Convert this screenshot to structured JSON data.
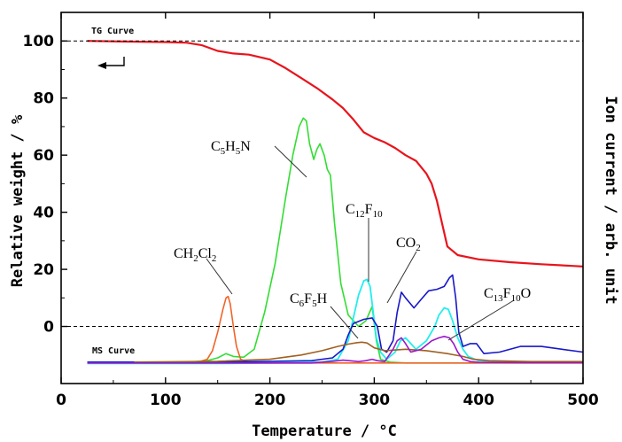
{
  "chart_data": {
    "type": "line",
    "xlabel": "Temperature / °C",
    "ylabel_left": "Relative weight / %",
    "ylabel_right": "Ion current / arb. unit",
    "xlim": [
      0,
      500
    ],
    "ylim": [
      -20,
      110
    ],
    "xticks": [
      "0",
      "100",
      "200",
      "300",
      "400",
      "500"
    ],
    "yticks": [
      "0",
      "20",
      "40",
      "60",
      "80",
      "100"
    ],
    "grid": false,
    "reference_lines": [
      100,
      0
    ],
    "annotations": {
      "tg_curve": "TG Curve",
      "ms_curve": "MS Curve",
      "c5h5n": {
        "base": "C",
        "s1": "5",
        "m1": "H",
        "s2": "5",
        "m2": "N"
      },
      "ch2cl2": {
        "base": "CH",
        "s1": "2",
        "m1": "Cl",
        "s2": "2"
      },
      "c12f10": {
        "base": "C",
        "s1": "12",
        "m1": "F",
        "s2": "10"
      },
      "co2": {
        "base": "CO",
        "s1": "2"
      },
      "c6f5h": {
        "base": "C",
        "s1": "6",
        "m1": "F",
        "s2": "5",
        "m2": "H"
      },
      "c13f10o": {
        "base": "C",
        "s1": "13",
        "m1": "F",
        "s2": "10",
        "m2": "O"
      }
    },
    "series": [
      {
        "key": "TG",
        "color": "#e8141c",
        "width": 2.2,
        "x": [
          25,
          60,
          100,
          120,
          135,
          150,
          165,
          180,
          200,
          215,
          230,
          245,
          260,
          270,
          280,
          290,
          300,
          310,
          320,
          330,
          340,
          350,
          355,
          360,
          365,
          370,
          380,
          400,
          430,
          460,
          490,
          500
        ],
        "y": [
          100,
          99.8,
          99.6,
          99.4,
          98.5,
          96.5,
          95.6,
          95.2,
          93.5,
          90.5,
          87,
          83.5,
          79.5,
          76.5,
          72.5,
          68,
          66,
          64.5,
          62.5,
          60,
          58,
          53.5,
          50,
          44,
          36,
          28,
          25,
          23.5,
          22.5,
          21.8,
          21.2,
          21
        ]
      },
      {
        "key": "C5H5N",
        "color": "#33dd33",
        "width": 1.6,
        "x": [
          25,
          100,
          120,
          140,
          150,
          158,
          165,
          175,
          185,
          195,
          205,
          215,
          222,
          228,
          232,
          235,
          238,
          242,
          245,
          248,
          252,
          255,
          258,
          262,
          268,
          275,
          285,
          292,
          298,
          302,
          306,
          315,
          330,
          360,
          400,
          450,
          500
        ],
        "y": [
          -12.8,
          -12.8,
          -12.6,
          -12,
          -11,
          -9.5,
          -10.5,
          -10.8,
          -8,
          5,
          22,
          45,
          60,
          70,
          73,
          72,
          64,
          58.5,
          62,
          64,
          60,
          55,
          53,
          36,
          15,
          4,
          0,
          2,
          7,
          -5,
          -11.5,
          -12.5,
          -12.8,
          -12.8,
          -12.8,
          -12.8,
          -12.8
        ]
      },
      {
        "key": "CH2Cl2",
        "color": "#f06428",
        "width": 1.6,
        "x": [
          25,
          100,
          130,
          140,
          145,
          150,
          155,
          158,
          160,
          162,
          165,
          168,
          172,
          180,
          200,
          300,
          400,
          500
        ],
        "y": [
          -12.8,
          -12.8,
          -12.6,
          -11.5,
          -8.5,
          -2,
          6,
          10,
          10.5,
          8,
          0,
          -7,
          -11.5,
          -12.7,
          -12.8,
          -12.8,
          -12.8,
          -12.8
        ]
      },
      {
        "key": "C12F10",
        "color": "#22eeee",
        "width": 1.8,
        "x": [
          25,
          150,
          200,
          250,
          265,
          275,
          280,
          285,
          290,
          293,
          296,
          299,
          302,
          306,
          312,
          320,
          325,
          330,
          335,
          340,
          350,
          358,
          362,
          367,
          371,
          375,
          380,
          385,
          390,
          400,
          450,
          500
        ],
        "y": [
          -13,
          -13,
          -12.8,
          -12.5,
          -11.5,
          -5,
          3,
          11,
          16,
          16.5,
          14,
          5,
          -4,
          -9,
          -11.5,
          -9,
          -5,
          -4,
          -6,
          -8,
          -5,
          0,
          4,
          6.5,
          6,
          2,
          -4,
          -8,
          -10.5,
          -12,
          -12.5,
          -12.5
        ]
      },
      {
        "key": "CO2",
        "color": "#1818c8",
        "width": 1.6,
        "x": [
          25,
          150,
          200,
          240,
          260,
          270,
          275,
          280,
          290,
          298,
          303,
          307,
          312,
          318,
          322,
          326,
          330,
          338,
          345,
          352,
          360,
          367,
          372,
          375,
          378,
          381,
          385,
          392,
          398,
          405,
          420,
          440,
          460,
          480,
          500
        ],
        "y": [
          -12.5,
          -12.5,
          -12.2,
          -12,
          -11,
          -8,
          -3,
          1,
          2.5,
          3,
          0,
          -8,
          -9,
          -5,
          5,
          12,
          10,
          6.5,
          9.5,
          12.5,
          13,
          14,
          17,
          18,
          10,
          -2,
          -7,
          -6,
          -6,
          -9.5,
          -9,
          -7,
          -7,
          -8,
          -9
        ]
      },
      {
        "key": "C6F5H",
        "color": "#a06020",
        "width": 1.6,
        "x": [
          70,
          150,
          200,
          230,
          250,
          265,
          275,
          283,
          288,
          293,
          300,
          310,
          330,
          350,
          370,
          385,
          395,
          410,
          450,
          500
        ],
        "y": [
          -12.5,
          -12.2,
          -11.5,
          -10,
          -8.5,
          -7,
          -6.2,
          -5.7,
          -5.5,
          -5.8,
          -7.5,
          -8.5,
          -8,
          -8.5,
          -9.5,
          -10.5,
          -11.5,
          -12,
          -12.3,
          -12.3
        ]
      },
      {
        "key": "C13F10O",
        "color": "#9a18c8",
        "width": 1.6,
        "x": [
          25,
          240,
          260,
          270,
          285,
          292,
          298,
          303,
          310,
          318,
          322,
          326,
          330,
          335,
          345,
          355,
          362,
          367,
          372,
          376,
          380,
          385,
          392,
          400,
          450,
          500
        ],
        "y": [
          -12.8,
          -12.8,
          -12.2,
          -11.8,
          -12.3,
          -12,
          -11.5,
          -12,
          -12.3,
          -8,
          -5,
          -4,
          -6,
          -9,
          -8,
          -5,
          -4,
          -3.5,
          -4,
          -6,
          -9,
          -11.5,
          -12.3,
          -12.6,
          -12.7,
          -12.7
        ]
      }
    ]
  }
}
